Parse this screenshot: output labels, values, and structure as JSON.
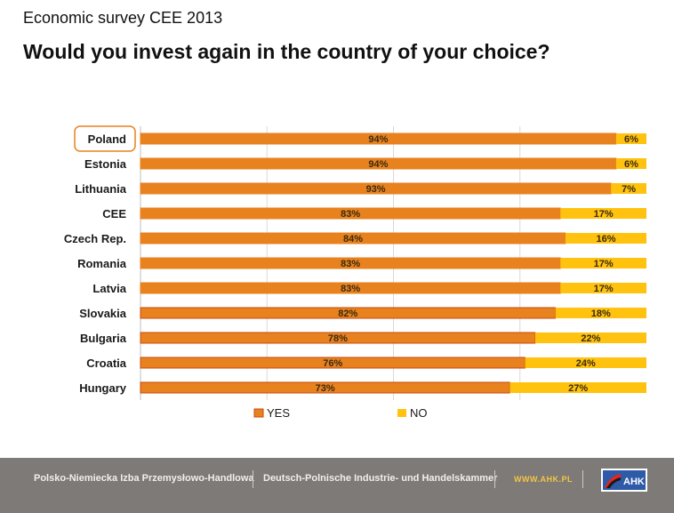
{
  "header": {
    "survey": "Economic survey CEE 2013",
    "question": "Would you invest again in the country of your choice?"
  },
  "chart_data": {
    "type": "bar",
    "stacked": true,
    "orientation": "horizontal",
    "categories": [
      "Poland",
      "Estonia",
      "Lithuania",
      "CEE",
      "Czech Rep.",
      "Romania",
      "Latvia",
      "Slovakia",
      "Bulgaria",
      "Croatia",
      "Hungary"
    ],
    "series": [
      {
        "name": "YES",
        "values": [
          94,
          94,
          93,
          83,
          84,
          83,
          83,
          82,
          78,
          76,
          73
        ]
      },
      {
        "name": "NO",
        "values": [
          6,
          6,
          7,
          17,
          16,
          17,
          17,
          18,
          22,
          24,
          27
        ]
      }
    ],
    "highlighted_category": "Poland",
    "xlim": [
      0,
      100
    ],
    "legend": "bottom",
    "grid": "vertical",
    "colors": {
      "yes": "#e8821e",
      "yes_dark": "#c94a10",
      "no": "#ffc20e"
    }
  },
  "footer": {
    "org_pl": "Polsko-Niemiecka Izba Przemysłowo-Handlowa",
    "org_de": "Deutsch-Polnische Industrie- und Handelskammer",
    "url": "WWW.AHK.PL",
    "logo": "AHK"
  }
}
